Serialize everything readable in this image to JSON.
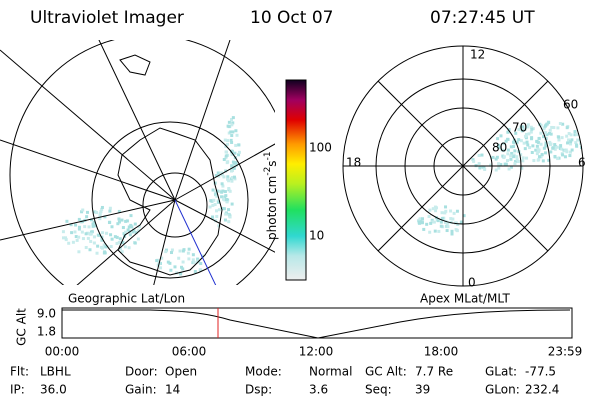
{
  "header": {
    "title": "Ultraviolet Imager",
    "date": "10 Oct 07",
    "time": "07:27:45 UT"
  },
  "colorbar": {
    "label": "photon cm",
    "exp1": "-2",
    "unit2": "s",
    "exp2": "-1",
    "ticks": [
      "100",
      "10"
    ]
  },
  "polar": {
    "mlt_labels": [
      "12",
      "18",
      "6",
      "0"
    ],
    "lat_labels": [
      "60",
      "70",
      "80"
    ]
  },
  "timeline": {
    "left_title": "Geographic Lat/Lon",
    "right_title": "Apex MLat/MLT",
    "y_label": "GC Alt",
    "y_ticks": [
      "9.0",
      "1.8"
    ],
    "x_ticks": [
      "00:00",
      "06:00",
      "12:00",
      "18:00",
      "23:59"
    ]
  },
  "info": [
    [
      {
        "label": "Flt:",
        "value": "LBHL"
      },
      {
        "label": "Door:",
        "value": "Open"
      },
      {
        "label": "Mode:",
        "value": "Normal"
      },
      {
        "label": "GC Alt:",
        "value": "7.7 Re"
      },
      {
        "label": "GLat:",
        "value": "-77.5"
      }
    ],
    [
      {
        "label": "IP:",
        "value": "36.0"
      },
      {
        "label": "Gain:",
        "value": "14"
      },
      {
        "label": "Dsp:",
        "value": "3.6"
      },
      {
        "label": "Seq:",
        "value": "39"
      },
      {
        "label": "GLon:",
        "value": "232.4"
      }
    ]
  ]
}
